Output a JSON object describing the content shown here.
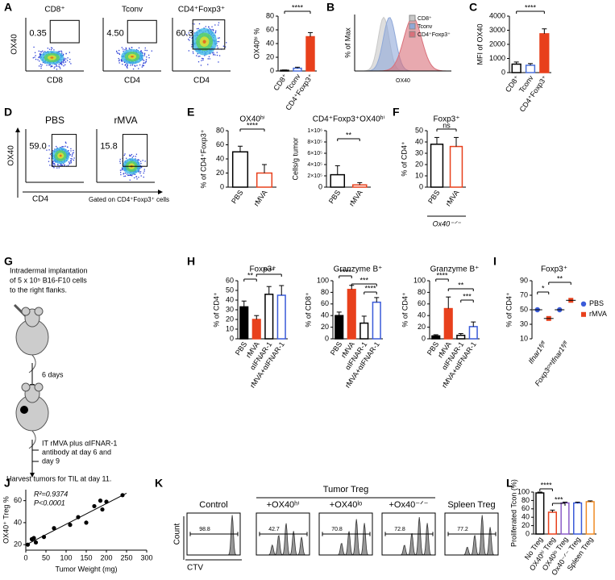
{
  "panel_labels": [
    "A",
    "B",
    "C",
    "D",
    "E",
    "F",
    "G",
    "H",
    "I",
    "J",
    "K",
    "L"
  ],
  "flow_a": {
    "titles": [
      "CD8⁺",
      "Tconv",
      "CD4⁺Foxp3⁺"
    ],
    "gates": [
      "0.35",
      "4.50",
      "60.3"
    ],
    "y_label": "OX40",
    "x_labels": [
      "CD8",
      "CD4",
      "CD4"
    ]
  },
  "histogram_b": {
    "legend": [
      "CD8⁺",
      "Tconv",
      "CD4⁺Foxp3⁺"
    ],
    "colors": [
      "#c8c8c8",
      "#8fa8d8",
      "#d9707a"
    ],
    "y_label": "% of Max",
    "x_label": "OX40"
  },
  "flow_d": {
    "titles": [
      "PBS",
      "rMVA"
    ],
    "gates": [
      "59.0",
      "15.8"
    ],
    "y_label": "OX40",
    "x_label": "CD4",
    "note": "Gated on CD4⁺Foxp3⁺ cells"
  },
  "schema_g": {
    "steps": [
      [
        "Intradermal implantation",
        "of 5 x 10⁵ B16-F10 cells",
        "to the right flanks."
      ],
      [
        "6 days"
      ],
      [
        "IT rMVA plus αIFNAR-1",
        "antibody at day 6 and",
        "day 9"
      ],
      [
        "Harvest tumors for TIL at day 11."
      ]
    ]
  },
  "flow_k": {
    "header": "Tumor Treg",
    "titles": [
      "Control",
      "+OX40ʰⁱ",
      "+OX40ˡᵒ",
      "+Ox40⁻ᐟ⁻",
      "Spleen Treg"
    ],
    "gates": [
      "98.8",
      "42.7",
      "70.8",
      "72.8",
      "77.2"
    ],
    "y_label": "Count",
    "x_label": "CTV"
  },
  "chart_data": [
    {
      "type": "bar",
      "ylabel": "OX40ʰⁱ %",
      "categories": [
        "CD8⁺",
        "Tconv",
        "CD4⁺Foxp3⁺"
      ],
      "values": [
        1,
        4,
        50
      ],
      "errors": [
        0.5,
        1.5,
        6
      ],
      "colors": [
        "#000000",
        "#4a6fd8",
        "#e8401c"
      ],
      "filled": [
        false,
        false,
        true
      ],
      "ylim": [
        0,
        80
      ],
      "yticks": [
        0,
        20,
        40,
        60,
        80
      ],
      "annotations": [
        "****"
      ]
    },
    {
      "type": "bar",
      "ylabel": "MFI of OX40",
      "categories": [
        "CD8⁺",
        "Tconv",
        "CD4⁺Foxp3⁺"
      ],
      "values": [
        600,
        520,
        2750
      ],
      "errors": [
        150,
        120,
        350
      ],
      "colors": [
        "#000000",
        "#4a6fd8",
        "#e8401c"
      ],
      "filled": [
        false,
        false,
        true
      ],
      "ylim": [
        0,
        4000
      ],
      "yticks": [
        0,
        1000,
        2000,
        3000,
        4000
      ],
      "annotations": [
        "****"
      ]
    },
    {
      "type": "bar",
      "title": "OX40ʰⁱ",
      "ylabel": "% of CD4⁺Foxp3⁺",
      "categories": [
        "PBS",
        "rMVA"
      ],
      "values": [
        50,
        20
      ],
      "errors": [
        8,
        12
      ],
      "colors": [
        "#000000",
        "#e8401c"
      ],
      "filled": [
        false,
        false
      ],
      "ylim": [
        0,
        80
      ],
      "yticks": [
        0,
        20,
        40,
        60,
        80
      ],
      "annotations": [
        "****"
      ]
    },
    {
      "type": "bar",
      "title": "CD4⁺Foxp3⁺OX40ʰⁱ",
      "ylabel": "Cells/g tumor",
      "categories": [
        "PBS",
        "rMVA"
      ],
      "values": [
        220000,
        40000
      ],
      "errors": [
        160000,
        40000
      ],
      "colors": [
        "#000000",
        "#e8401c"
      ],
      "filled": [
        false,
        false
      ],
      "ylim": [
        0,
        1000000
      ],
      "yticks": [
        0,
        {
          "value": 200000,
          "label": "2×10⁵"
        },
        {
          "value": 400000,
          "label": "4×10⁵"
        },
        {
          "value": 600000,
          "label": "6×10⁵"
        },
        {
          "value": 800000,
          "label": "8×10⁵"
        },
        {
          "value": 1000000,
          "label": "1×10⁶"
        }
      ],
      "annotations": [
        "**"
      ]
    },
    {
      "type": "bar",
      "title": "Foxp3⁺",
      "ylabel": "% of CD4⁺",
      "xlabel": "Ox40⁻ᐟ⁻",
      "categories": [
        "PBS",
        "rMVA"
      ],
      "values": [
        38,
        36
      ],
      "errors": [
        6,
        8
      ],
      "colors": [
        "#000000",
        "#e8401c"
      ],
      "filled": [
        false,
        false
      ],
      "ylim": [
        0,
        50
      ],
      "yticks": [
        0,
        10,
        20,
        30,
        40,
        50
      ],
      "annotations": [
        "ns"
      ]
    },
    {
      "type": "bar",
      "title": "Foxp3⁺",
      "ylabel": "% of CD4⁺",
      "categories": [
        "PBS",
        "rMVA",
        "αIFNAR-1",
        "rMVA+αIFNAR-1"
      ],
      "values": [
        33,
        20,
        46,
        45
      ],
      "errors": [
        6,
        4,
        8,
        10
      ],
      "colors": [
        "#000000",
        "#e8401c",
        "#000000",
        "#3a5bd9"
      ],
      "filled": [
        true,
        true,
        false,
        false
      ],
      "ylim": [
        0,
        60
      ],
      "yticks": [
        0,
        10,
        20,
        30,
        40,
        50,
        60
      ],
      "annotations": [
        "**",
        "****"
      ]
    },
    {
      "type": "bar",
      "title": "Granzyme B⁺",
      "ylabel": "% of CD8⁺",
      "categories": [
        "PBS",
        "rMVA",
        "αIFNAR-1",
        "rMVA+αIFNAR-1"
      ],
      "values": [
        40,
        85,
        27,
        63
      ],
      "errors": [
        6,
        7,
        12,
        8
      ],
      "colors": [
        "#000000",
        "#e8401c",
        "#000000",
        "#3a5bd9"
      ],
      "filled": [
        true,
        true,
        false,
        false
      ],
      "ylim": [
        0,
        100
      ],
      "yticks": [
        0,
        20,
        40,
        60,
        80,
        100
      ],
      "annotations": [
        "****",
        "***",
        "****"
      ]
    },
    {
      "type": "bar",
      "title": "Granzyme B⁺",
      "ylabel": "% of CD4⁺",
      "categories": [
        "PBS",
        "rMVA",
        "αIFNAR-1",
        "rMVA+αIFNAR-1"
      ],
      "values": [
        5,
        52,
        6,
        21
      ],
      "errors": [
        2,
        20,
        3,
        8
      ],
      "colors": [
        "#000000",
        "#e8401c",
        "#000000",
        "#3a5bd9"
      ],
      "filled": [
        true,
        true,
        false,
        false
      ],
      "ylim": [
        0,
        100
      ],
      "yticks": [
        0,
        20,
        40,
        60,
        80,
        100
      ],
      "annotations": [
        "****",
        "**",
        "***"
      ]
    },
    {
      "type": "dot",
      "title": "Foxp3⁺",
      "ylabel": "% of CD4⁺",
      "categories": [
        "Ifnar1ᶠˡ/ᶠˡ",
        "Foxp3ᶜʳᵉIfnar1ᶠˡ/ᶠˡ"
      ],
      "series": [
        {
          "name": "PBS",
          "color": "#3a5bd9",
          "values": [
            50,
            50
          ]
        },
        {
          "name": "rMVA",
          "color": "#e8401c",
          "values": [
            38,
            63
          ]
        }
      ],
      "ylim": [
        10,
        90
      ],
      "yticks": [
        10,
        30,
        50,
        70,
        90
      ],
      "annotations": [
        "*",
        "**"
      ]
    },
    {
      "type": "scatter",
      "xlabel": "Tumor Weight (mg)",
      "ylabel": "OX40⁺ Treg %",
      "x": [
        5,
        15,
        20,
        25,
        45,
        70,
        110,
        130,
        150,
        170,
        185,
        190,
        200,
        240
      ],
      "values": [
        20,
        25,
        26,
        22,
        27,
        35,
        38,
        45,
        40,
        55,
        60,
        52,
        59,
        65
      ],
      "color": "#000000",
      "xlim": [
        0,
        300
      ],
      "xticks": [
        0,
        50,
        100,
        150,
        200,
        250,
        300
      ],
      "ylim": [
        15,
        70
      ],
      "yticks": [
        20,
        40,
        60
      ],
      "annotations": [
        "R²=0.9374",
        "P<0.0001"
      ]
    },
    {
      "type": "bar",
      "ylabel": "Proliferated Tcon (%)",
      "categories": [
        "No Treg",
        "OX40ʰⁱ Treg",
        "OX40ˡᵒ Treg",
        "Ox40⁻ᐟ⁻ Treg",
        "Spleen Treg"
      ],
      "values": [
        98,
        52,
        74,
        74,
        77
      ],
      "errors": [
        2,
        5,
        2,
        2,
        2
      ],
      "colors": [
        "#000000",
        "#e8401c",
        "#8a5cc8",
        "#3a5bd9",
        "#f08a24"
      ],
      "filled": [
        false,
        false,
        false,
        false,
        false
      ],
      "ylim": [
        0,
        100
      ],
      "yticks": [
        0,
        20,
        40,
        60,
        80,
        100
      ],
      "annotations": [
        "****",
        "***"
      ]
    }
  ]
}
